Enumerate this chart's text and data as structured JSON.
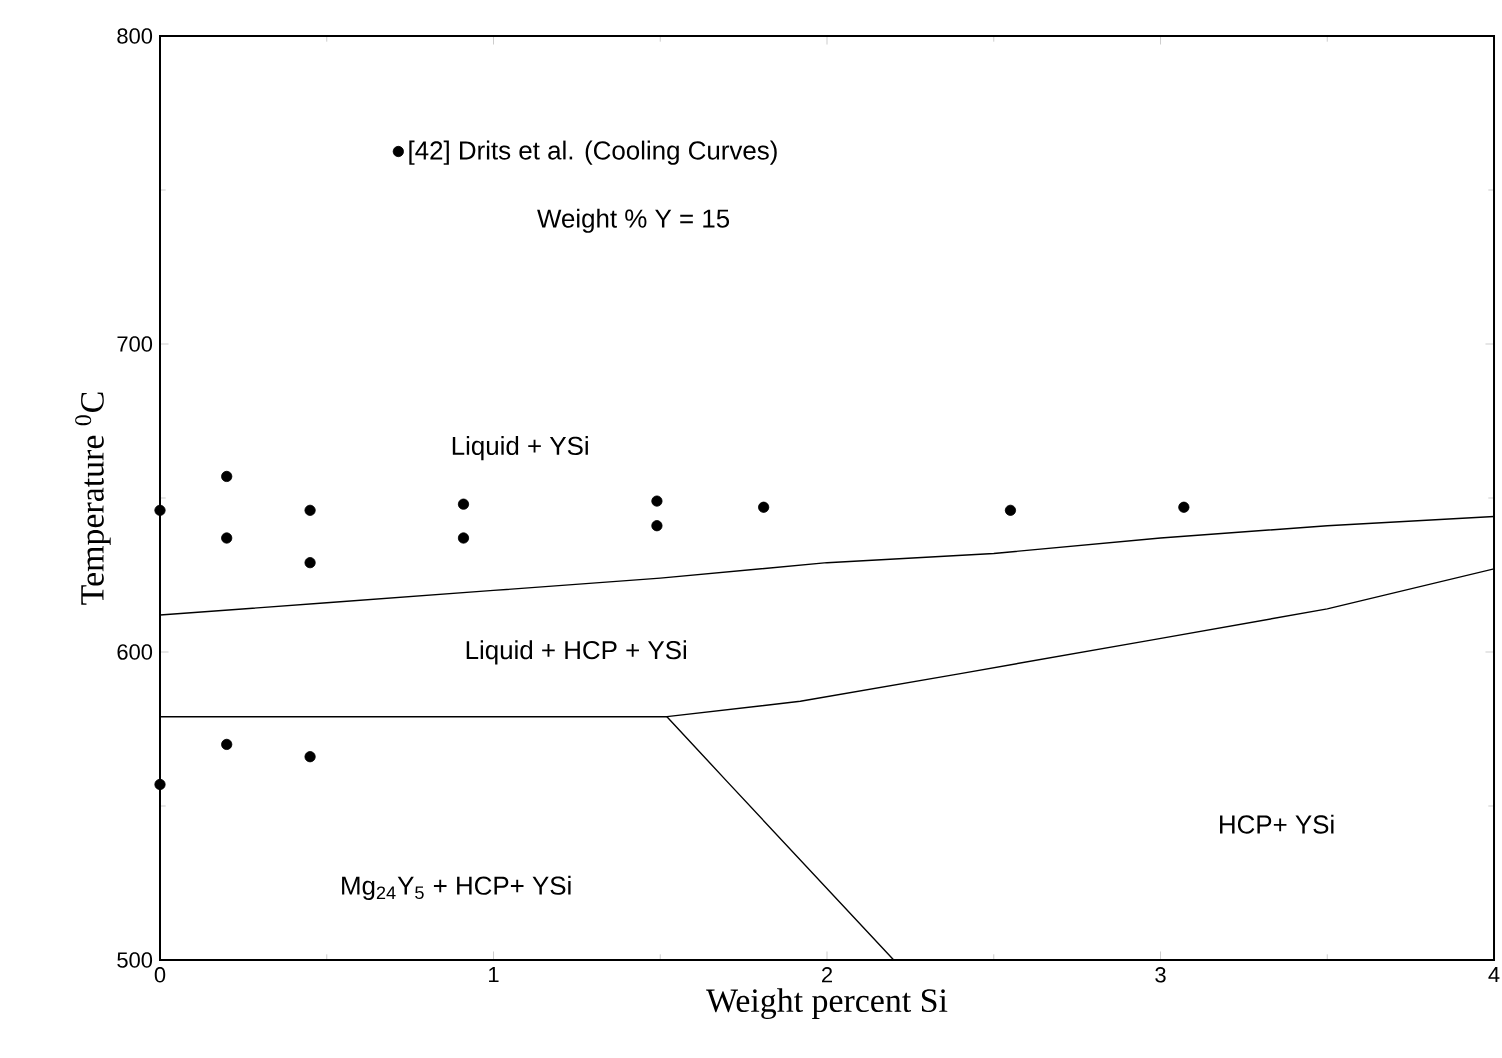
{
  "chart_data": {
    "type": "scatter",
    "xlabel": "Weight percent Si",
    "ylabel": "Temperature $^{0}$C",
    "xlim": [
      0,
      4
    ],
    "ylim": [
      500,
      800
    ],
    "xticks": [
      0,
      1,
      2,
      3,
      4
    ],
    "yticks": [
      500,
      600,
      700,
      800
    ],
    "grid": false,
    "legend": "top left",
    "series": [
      {
        "name": "[42] Drits et al. (Cooling Curves)",
        "color": "#000000",
        "marker": "circle",
        "x": [
          0,
          0,
          0.2,
          0.2,
          0.2,
          0.45,
          0.45,
          0.45,
          0.91,
          0.91,
          1.49,
          1.49,
          1.81,
          2.55,
          3.07
        ],
        "values": [
          646,
          557,
          657,
          637,
          570,
          646,
          629,
          566,
          648,
          637,
          649,
          641,
          647,
          646,
          647
        ]
      },
      {
        "type": "line",
        "color": "#000000",
        "marker": "none",
        "line_style": "solid",
        "x": [
          0,
          0.5,
          1,
          1.5,
          2,
          2.5,
          3,
          3.5,
          4
        ],
        "values": [
          612,
          616,
          620,
          624,
          629,
          632,
          637,
          641,
          644
        ]
      },
      {
        "type": "line",
        "color": "#000000",
        "marker": "none",
        "line_style": "solid",
        "x": [
          0,
          1.52,
          1.92,
          2.4,
          2.98,
          3.5,
          4
        ],
        "values": [
          579,
          579,
          584,
          593,
          604,
          614,
          627
        ]
      },
      {
        "type": "line",
        "color": "#000000",
        "marker": "none",
        "line_style": "solid",
        "x": [
          1.52,
          1.7,
          2.2
        ],
        "values": [
          579,
          558,
          500
        ]
      }
    ],
    "annotations": [
      "Weight % Y = 15",
      "Liquid + YSi",
      "Liquid + HCP + YSi",
      "HCP+ YSi",
      "Mg$_{24}$Y$_{5}$ + HCP+ YSi"
    ]
  }
}
